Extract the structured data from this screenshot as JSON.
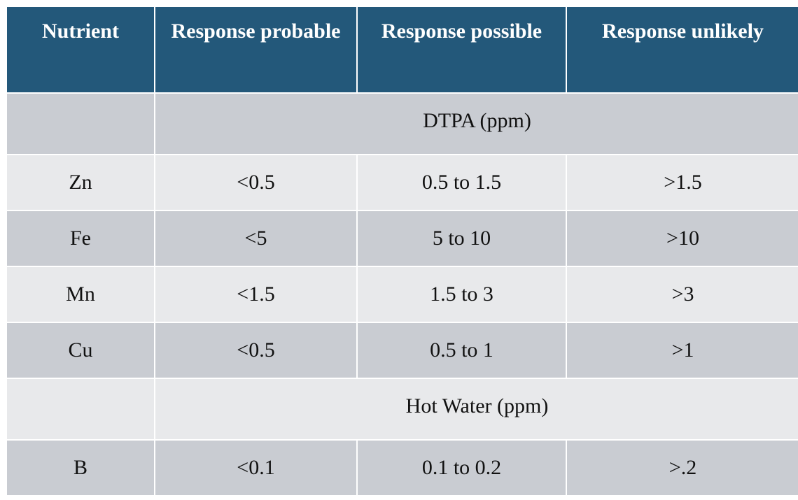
{
  "table": {
    "headers": [
      "Nutrient",
      "Response probable",
      "Response possible",
      "Response unlikely"
    ],
    "sections": [
      {
        "label": "DTPA (ppm)",
        "rows": [
          {
            "nutrient": "Zn",
            "probable": "<0.5",
            "possible": "0.5 to 1.5",
            "unlikely": ">1.5"
          },
          {
            "nutrient": "Fe",
            "probable": "<5",
            "possible": "5 to 10",
            "unlikely": ">10"
          },
          {
            "nutrient": "Mn",
            "probable": "<1.5",
            "possible": "1.5 to 3",
            "unlikely": ">3"
          },
          {
            "nutrient": "Cu",
            "probable": "<0.5",
            "possible": "0.5 to 1",
            "unlikely": ">1"
          }
        ]
      },
      {
        "label": "Hot Water (ppm)",
        "rows": [
          {
            "nutrient": "B",
            "probable": "<0.1",
            "possible": "0.1 to 0.2",
            "unlikely": ">.2"
          }
        ]
      }
    ]
  },
  "colors": {
    "header_bg": "#23587a",
    "header_text": "#ffffff",
    "row_dark": "#c9ccd2",
    "row_light": "#e8e9eb"
  }
}
